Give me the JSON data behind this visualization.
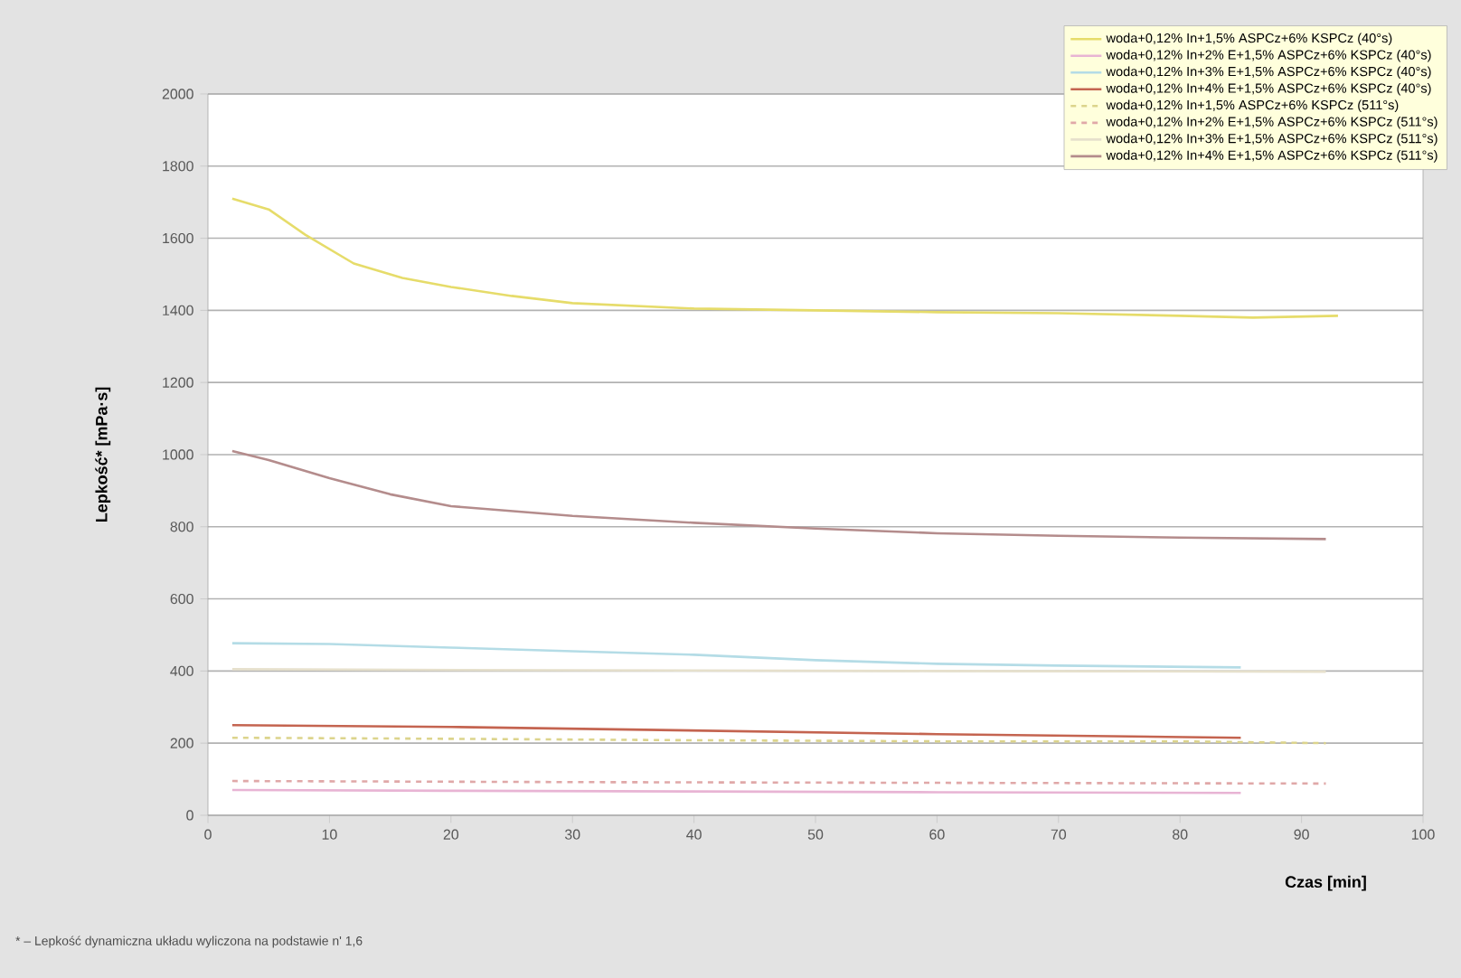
{
  "chart_data": {
    "type": "line",
    "xlabel": "Czas [min]",
    "ylabel": "Lepkość* [mPa·s]",
    "xlim": [
      0,
      100
    ],
    "ylim": [
      0,
      2000
    ],
    "xticks": [
      0,
      10,
      20,
      30,
      40,
      50,
      60,
      70,
      80,
      90,
      100
    ],
    "yticks": [
      0,
      200,
      400,
      600,
      800,
      1000,
      1200,
      1400,
      1600,
      1800,
      2000
    ],
    "grid": "y",
    "legend": "top right",
    "annotations": [
      "* – Lepkość dynamiczna układu wyliczona na podstawie n' 1,6"
    ],
    "series": [
      {
        "name": "woda+0,12% In+1,5% ASPCz+6% KSPCz (40°s)",
        "color": "#e6dc6a",
        "line_style": "solid",
        "x": [
          2,
          5,
          8,
          12,
          16,
          20,
          25,
          30,
          40,
          50,
          60,
          70,
          80,
          86,
          93
        ],
        "values": [
          1710,
          1680,
          1610,
          1530,
          1490,
          1465,
          1440,
          1420,
          1405,
          1400,
          1395,
          1392,
          1385,
          1380,
          1385
        ]
      },
      {
        "name": "woda+0,12% In+2% E+1,5% ASPCz+6% KSPCz (40°s)",
        "color": "#e8b4d4",
        "line_style": "solid",
        "x": [
          2,
          20,
          40,
          60,
          85
        ],
        "values": [
          70,
          68,
          66,
          64,
          62
        ]
      },
      {
        "name": "woda+0,12% In+3% E+1,5% ASPCz+6% KSPCz (40°s)",
        "color": "#b4dce6",
        "line_style": "solid",
        "x": [
          2,
          10,
          20,
          30,
          40,
          50,
          60,
          70,
          85
        ],
        "values": [
          477,
          475,
          465,
          455,
          445,
          430,
          420,
          415,
          410
        ]
      },
      {
        "name": "woda+0,12% In+4% E+1,5% ASPCz+6% KSPCz (40°s)",
        "color": "#c46450",
        "line_style": "solid",
        "x": [
          2,
          20,
          40,
          60,
          85
        ],
        "values": [
          250,
          245,
          235,
          225,
          215
        ]
      },
      {
        "name": "woda+0,12% In+1,5% ASPCz+6% KSPCz (511°s)",
        "color": "#dcd48c",
        "line_style": "dashed",
        "x": [
          2,
          20,
          40,
          60,
          80,
          92
        ],
        "values": [
          215,
          212,
          208,
          205,
          205,
          200
        ]
      },
      {
        "name": "woda+0,12% In+2% E+1,5% ASPCz+6% KSPCz (511°s)",
        "color": "#e0a8a8",
        "line_style": "dashed",
        "x": [
          2,
          30,
          60,
          92
        ],
        "values": [
          95,
          92,
          90,
          88
        ]
      },
      {
        "name": "woda+0,12% In+3% E+1,5% ASPCz+6% KSPCz (511°s)",
        "color": "#e6e0cc",
        "line_style": "solid",
        "x": [
          2,
          30,
          60,
          92
        ],
        "values": [
          405,
          402,
          400,
          398
        ]
      },
      {
        "name": "woda+0,12% In+4% E+1,5% ASPCz+6% KSPCz (511°s)",
        "color": "#b48c8c",
        "line_style": "solid",
        "x": [
          2,
          5,
          10,
          15,
          20,
          30,
          40,
          50,
          60,
          70,
          80,
          92
        ],
        "values": [
          1010,
          985,
          935,
          890,
          857,
          830,
          811,
          795,
          782,
          775,
          770,
          766
        ]
      }
    ]
  }
}
